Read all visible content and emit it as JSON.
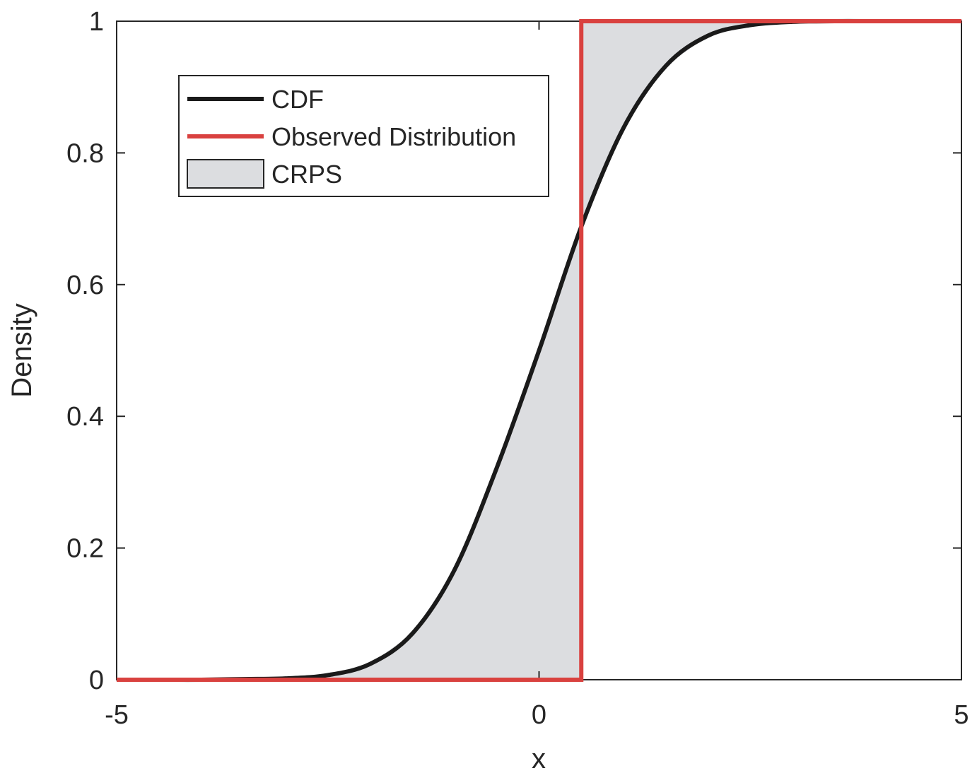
{
  "chart_data": {
    "type": "line",
    "title": "",
    "xlabel": "x",
    "ylabel": "Density",
    "xlim": [
      -5,
      5
    ],
    "ylim": [
      0,
      1
    ],
    "xticks": [
      -5,
      0,
      5
    ],
    "yticks": [
      0,
      0.2,
      0.4,
      0.6,
      0.8,
      1
    ],
    "xtick_labels": [
      "-5",
      "0",
      "5"
    ],
    "ytick_labels": [
      "0",
      "0.2",
      "0.4",
      "0.6",
      "0.8",
      "1"
    ],
    "grid": false,
    "legend_position": "top-left",
    "legend": [
      {
        "label": "CDF",
        "kind": "line",
        "color": "#1a1a1a"
      },
      {
        "label": "Observed Distribution",
        "kind": "line",
        "color": "#d9413f"
      },
      {
        "label": "CRPS",
        "kind": "patch",
        "color": "#dcdde0"
      }
    ],
    "series": [
      {
        "name": "CDF",
        "color": "#1a1a1a",
        "x": [
          -5,
          -4.5,
          -4,
          -3.5,
          -3,
          -2.5,
          -2,
          -1.5,
          -1,
          -0.5,
          0,
          0.5,
          1,
          1.5,
          2,
          2.5,
          3,
          3.5,
          4,
          4.5,
          5
        ],
        "y": [
          0,
          0,
          0,
          0.001,
          0.002,
          0.007,
          0.024,
          0.07,
          0.167,
          0.322,
          0.5,
          0.688,
          0.838,
          0.932,
          0.978,
          0.994,
          0.999,
          1,
          1,
          1,
          1
        ]
      },
      {
        "name": "Observed Distribution",
        "color": "#d9413f",
        "step_at": 0.5,
        "x": [
          -5,
          0.5,
          0.5,
          5
        ],
        "y": [
          0,
          0,
          1,
          1
        ]
      }
    ],
    "shaded_area": {
      "name": "CRPS",
      "color": "#dcdde0",
      "between": [
        "CDF",
        "Observed Distribution"
      ]
    }
  }
}
